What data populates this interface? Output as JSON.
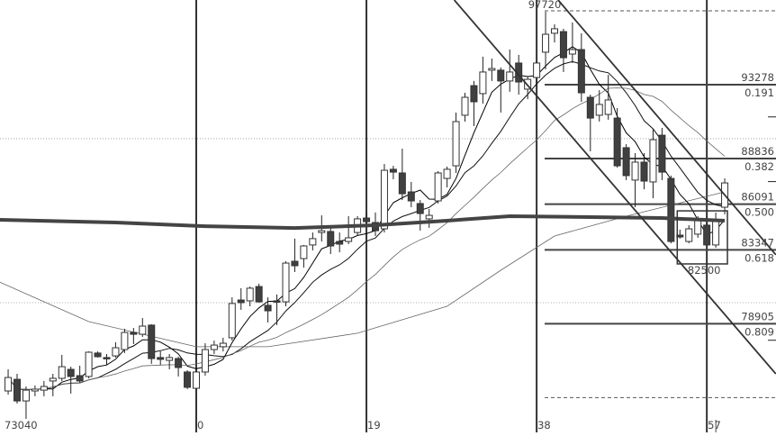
{
  "chart_data": {
    "type": "candlestick",
    "title": "",
    "colors": {
      "up_body": "#ffffff",
      "down_body": "#404040",
      "wick": "#222222",
      "vertical_line": "#333333",
      "fib_line": "#444444",
      "thick_ma": "#444444"
    },
    "x_labels": [
      {
        "index": -21,
        "label": "73040"
      },
      {
        "index": 0,
        "label": "0"
      },
      {
        "index": 19,
        "label": "19"
      },
      {
        "index": 38,
        "label": "38"
      },
      {
        "index": 57,
        "label": "57"
      }
    ],
    "vertical_lines": [
      0,
      19,
      38,
      57
    ],
    "first_index": -21,
    "candles_ohlc": [
      [
        74860,
        76160,
        74640,
        75670
      ],
      [
        75560,
        75890,
        74100,
        74260
      ],
      [
        74260,
        75130,
        73180,
        74910
      ],
      [
        74860,
        75190,
        74540,
        74970
      ],
      [
        74910,
        75460,
        74540,
        75130
      ],
      [
        75460,
        75890,
        74540,
        75620
      ],
      [
        75620,
        77030,
        75460,
        76320
      ],
      [
        76160,
        76320,
        74700,
        75730
      ],
      [
        75780,
        76380,
        75350,
        75460
      ],
      [
        75730,
        77240,
        75620,
        77190
      ],
      [
        77140,
        77240,
        76870,
        76920
      ],
      [
        76870,
        77080,
        76430,
        76810
      ],
      [
        76970,
        77790,
        76870,
        77460
      ],
      [
        77350,
        78600,
        77140,
        78380
      ],
      [
        78380,
        78650,
        77680,
        78270
      ],
      [
        78270,
        79250,
        78110,
        78760
      ],
      [
        78820,
        78870,
        76490,
        76810
      ],
      [
        76870,
        77240,
        76430,
        76760
      ],
      [
        76700,
        77080,
        76160,
        76870
      ],
      [
        76810,
        76920,
        75730,
        76270
      ],
      [
        76000,
        76110,
        74970,
        75080
      ],
      [
        75020,
        76110,
        74970,
        76000
      ],
      [
        76000,
        77730,
        75780,
        77350
      ],
      [
        77350,
        77890,
        77080,
        77620
      ],
      [
        77520,
        78060,
        77240,
        77730
      ],
      [
        78060,
        80490,
        77890,
        80120
      ],
      [
        80330,
        81040,
        79740,
        80170
      ],
      [
        80280,
        81140,
        79950,
        81040
      ],
      [
        81140,
        81310,
        80170,
        80220
      ],
      [
        80010,
        80490,
        78980,
        79680
      ],
      [
        80280,
        80660,
        78820,
        80220
      ],
      [
        80220,
        82660,
        79950,
        82550
      ],
      [
        82660,
        84020,
        82010,
        82390
      ],
      [
        82820,
        83640,
        82280,
        83580
      ],
      [
        83640,
        84390,
        83310,
        84020
      ],
      [
        84390,
        85420,
        83850,
        84500
      ],
      [
        84450,
        84830,
        83090,
        83580
      ],
      [
        83850,
        84390,
        83200,
        83690
      ],
      [
        83850,
        85370,
        83690,
        84070
      ],
      [
        84390,
        85370,
        84180,
        85210
      ],
      [
        85260,
        85590,
        84940,
        85040
      ],
      [
        84990,
        85590,
        84180,
        84500
      ],
      [
        84610,
        88510,
        84390,
        88130
      ],
      [
        88190,
        88400,
        87590,
        88020
      ],
      [
        87970,
        89430,
        86340,
        86720
      ],
      [
        86830,
        87430,
        85910,
        86290
      ],
      [
        86130,
        86340,
        84500,
        85530
      ],
      [
        85210,
        85800,
        84670,
        85420
      ],
      [
        86290,
        88080,
        86130,
        87970
      ],
      [
        87640,
        88350,
        87100,
        88190
      ],
      [
        88400,
        91600,
        87970,
        91060
      ],
      [
        91440,
        92790,
        91060,
        92520
      ],
      [
        93220,
        93500,
        90790,
        92250
      ],
      [
        92740,
        94960,
        92140,
        94040
      ],
      [
        94150,
        94850,
        93500,
        94250
      ],
      [
        94150,
        94310,
        91600,
        93500
      ],
      [
        93500,
        95390,
        92850,
        94040
      ],
      [
        94580,
        95070,
        92680,
        93440
      ],
      [
        93010,
        93770,
        92410,
        93600
      ],
      [
        93710,
        94690,
        93220,
        94580
      ],
      [
        95230,
        97670,
        94200,
        96310
      ],
      [
        96370,
        96910,
        95820,
        96640
      ],
      [
        96470,
        96640,
        94040,
        94900
      ],
      [
        95120,
        97020,
        94580,
        95390
      ],
      [
        95390,
        96370,
        92250,
        92790
      ],
      [
        92520,
        92680,
        89270,
        91270
      ],
      [
        91440,
        92950,
        91060,
        92090
      ],
      [
        91490,
        93870,
        91170,
        92360
      ],
      [
        91270,
        91870,
        88290,
        88400
      ],
      [
        89490,
        89700,
        87540,
        87810
      ],
      [
        87540,
        89160,
        85910,
        88620
      ],
      [
        88620,
        89160,
        86990,
        87480
      ],
      [
        87430,
        90620,
        86450,
        89970
      ],
      [
        90240,
        90680,
        87540,
        88020
      ],
      [
        87640,
        87810,
        83740,
        83850
      ],
      [
        84230,
        84560,
        84020,
        84120
      ],
      [
        83850,
        84830,
        83740,
        84610
      ],
      [
        84290,
        85370,
        84070,
        85100
      ],
      [
        84830,
        85370,
        83530,
        83640
      ],
      [
        83640,
        85590,
        83470,
        85100
      ],
      [
        85910,
        87640,
        85480,
        87370
      ]
    ],
    "moving_averages_computed": [
      5,
      10,
      20
    ],
    "long_ma_thin": [
      [
        -22,
        81420
      ],
      [
        -12,
        79030
      ],
      [
        0,
        77520
      ],
      [
        8,
        77520
      ],
      [
        18,
        78330
      ],
      [
        28,
        79950
      ],
      [
        34,
        82120
      ],
      [
        40,
        84180
      ],
      [
        48,
        85370
      ],
      [
        59,
        86830
      ]
    ],
    "long_ma_thick": [
      [
        -22,
        85150
      ],
      [
        -9,
        84990
      ],
      [
        1,
        84770
      ],
      [
        11,
        84660
      ],
      [
        20,
        84830
      ],
      [
        28,
        85100
      ],
      [
        35,
        85370
      ],
      [
        43,
        85320
      ],
      [
        52,
        85260
      ],
      [
        59,
        85100
      ]
    ],
    "channel_lines": [
      [
        [
          28.8,
          98370
        ],
        [
          64.7,
          75890
        ]
      ],
      [
        [
          40.4,
          98370
        ],
        [
          64.7,
          83050
        ]
      ]
    ],
    "dotted_grid_prices": [
      90030,
      80170
    ],
    "high_label": "97720",
    "high_price": 97720,
    "fib_low_price": 74463,
    "fib_levels": [
      {
        "price": 93278,
        "price_label": "93278",
        "ratio_label": "0.191"
      },
      {
        "price": 88836,
        "price_label": "88836",
        "ratio_label": "0.382"
      },
      {
        "price": 86091,
        "price_label": "86091",
        "ratio_label": "0.500"
      },
      {
        "price": 83347,
        "price_label": "83347",
        "ratio_label": "0.618"
      },
      {
        "price": 78905,
        "price_label": "78905",
        "ratio_label": "0.809"
      }
    ],
    "box": {
      "from_index": 54,
      "to_index": 59,
      "top_price": 85690,
      "low_price": 82500,
      "label": "82500"
    },
    "axis_tick_prices": [
      91340,
      87450,
      77910
    ]
  }
}
